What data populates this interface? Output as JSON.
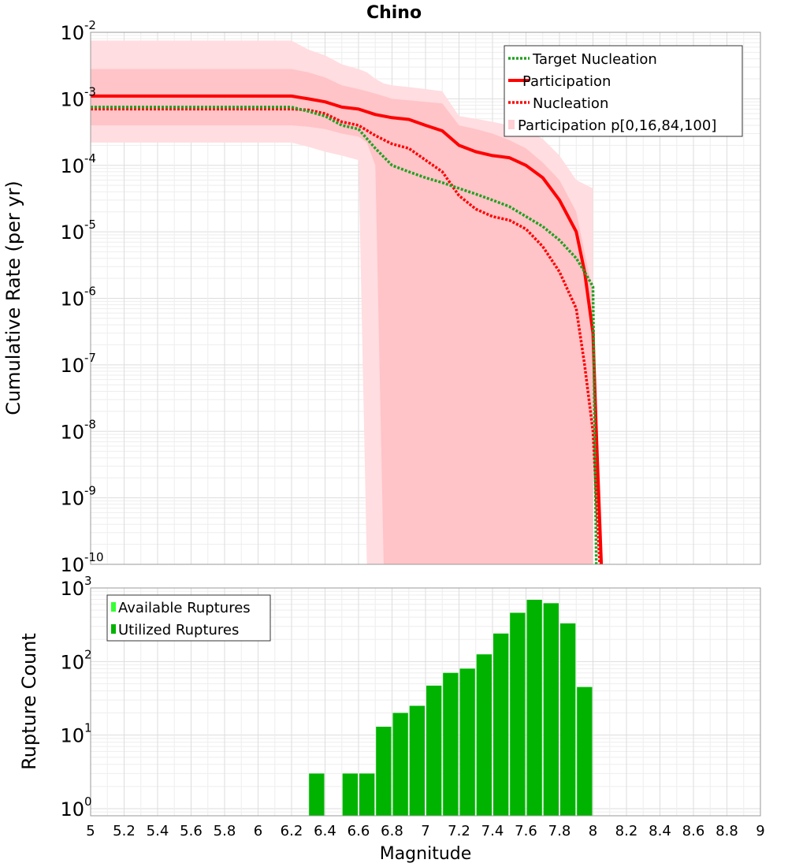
{
  "chart_data": [
    {
      "type": "line",
      "title": "Chino",
      "xlabel": "",
      "ylabel": "Cumulative Rate (per yr)",
      "xlim": [
        5,
        9
      ],
      "ylim": [
        1e-10,
        0.01
      ],
      "yscale": "log",
      "ytick_labels": [
        {
          "base": "10",
          "exp": "-2",
          "value": 0.01
        },
        {
          "base": "10",
          "exp": "-3",
          "value": 0.001
        },
        {
          "base": "10",
          "exp": "-4",
          "value": 0.0001
        },
        {
          "base": "10",
          "exp": "-5",
          "value": 1e-05
        },
        {
          "base": "10",
          "exp": "-6",
          "value": 1e-06
        },
        {
          "base": "10",
          "exp": "-7",
          "value": 1e-07
        },
        {
          "base": "10",
          "exp": "-8",
          "value": 1e-08
        },
        {
          "base": "10",
          "exp": "-9",
          "value": 1e-09
        },
        {
          "base": "10",
          "exp": "-10",
          "value": 1e-10
        }
      ],
      "grid": true,
      "legend_position": "top-right",
      "series": [
        {
          "name": "Target Nucleation",
          "style": "dotted",
          "color": "#22a022",
          "x": [
            5.0,
            6.2,
            6.3,
            6.4,
            6.5,
            6.6,
            6.7,
            6.8,
            6.9,
            7.0,
            7.1,
            7.2,
            7.3,
            7.4,
            7.5,
            7.6,
            7.7,
            7.8,
            7.9,
            7.95,
            8.0,
            8.02
          ],
          "y": [
            0.00075,
            0.00075,
            0.00065,
            0.00055,
            0.0004,
            0.00035,
            0.00018,
            0.0001,
            8e-05,
            6.5e-05,
            5.5e-05,
            4.5e-05,
            3.7e-05,
            3e-05,
            2.4e-05,
            1.7e-05,
            1.2e-05,
            7.5e-06,
            4e-06,
            2.5e-06,
            1.5e-06,
            1e-10
          ]
        },
        {
          "name": "Participation",
          "style": "solid",
          "color": "#ff0000",
          "x": [
            5.0,
            6.2,
            6.3,
            6.4,
            6.5,
            6.6,
            6.7,
            6.8,
            6.9,
            7.0,
            7.1,
            7.2,
            7.3,
            7.4,
            7.5,
            7.6,
            7.7,
            7.8,
            7.9,
            7.95,
            8.0,
            8.02,
            8.05
          ],
          "y": [
            0.0011,
            0.0011,
            0.001,
            0.0009,
            0.00075,
            0.0007,
            0.00058,
            0.00052,
            0.00049,
            0.0004,
            0.00033,
            0.0002,
            0.00016,
            0.00014,
            0.00013,
            0.0001,
            6.5e-05,
            3e-05,
            1e-05,
            2.5e-06,
            3e-07,
            1e-08,
            1e-10
          ]
        },
        {
          "name": "Nucleation",
          "style": "dotted",
          "color": "#ff0000",
          "x": [
            5.0,
            6.2,
            6.3,
            6.4,
            6.5,
            6.6,
            6.7,
            6.8,
            6.9,
            7.0,
            7.1,
            7.2,
            7.3,
            7.4,
            7.5,
            7.6,
            7.7,
            7.8,
            7.9,
            7.95,
            8.0,
            8.02,
            8.04
          ],
          "y": [
            0.0007,
            0.0007,
            0.00068,
            0.0006,
            0.00045,
            0.0004,
            0.00028,
            0.00021,
            0.00018,
            0.00012,
            8e-05,
            3.5e-05,
            2.2e-05,
            1.7e-05,
            1.5e-05,
            1.1e-05,
            6e-06,
            2.5e-06,
            7e-07,
            1e-07,
            1e-08,
            1e-09,
            1e-10
          ]
        },
        {
          "name": "Participation p[0,16,84,100]",
          "style": "band",
          "color": "#ff9aa8",
          "x": [
            5.0,
            6.2,
            6.3,
            6.4,
            6.5,
            6.6,
            6.65,
            6.7,
            6.75,
            6.8,
            6.9,
            7.0,
            7.1,
            7.2,
            7.3,
            7.4,
            7.5,
            7.6,
            7.7,
            7.8,
            7.9,
            8.0
          ],
          "p0": [
            0.00022,
            0.00022,
            0.00019,
            0.00016,
            0.00014,
            0.00012,
            1e-10,
            1e-10,
            1e-10,
            1e-10,
            1e-10,
            1e-10,
            1e-10,
            1e-10,
            1e-10,
            1e-10,
            1e-10,
            1e-10,
            1e-10,
            1e-10,
            1e-10,
            1e-10
          ],
          "p16": [
            0.0004,
            0.0004,
            0.00038,
            0.00035,
            0.0003,
            0.00027,
            0.00022,
            0.0001,
            1e-10,
            1e-10,
            1e-10,
            1e-10,
            1e-10,
            1e-10,
            1e-10,
            1e-10,
            1e-10,
            1e-10,
            1e-10,
            1e-10,
            1e-10,
            1e-10
          ],
          "p84": [
            0.0028,
            0.0028,
            0.0025,
            0.0021,
            0.0016,
            0.0014,
            0.0013,
            0.0012,
            0.0011,
            0.001,
            0.00095,
            0.0009,
            0.00085,
            0.0004,
            0.00035,
            0.0003,
            0.00024,
            0.00018,
            0.00011,
            6e-05,
            2e-05,
            1.2e-06
          ],
          "p100": [
            0.0075,
            0.0075,
            0.0055,
            0.0045,
            0.0033,
            0.0028,
            0.0025,
            0.002,
            0.0017,
            0.0016,
            0.0015,
            0.0014,
            0.0013,
            0.00055,
            0.0005,
            0.00045,
            0.0004,
            0.00035,
            0.00025,
            0.00014,
            6e-05,
            4.5e-05
          ]
        }
      ]
    },
    {
      "type": "bar",
      "title": "",
      "xlabel": "Magnitude",
      "ylabel": "Rupture Count",
      "xlim": [
        5,
        9
      ],
      "ylim": [
        0.8,
        1000
      ],
      "yscale": "log",
      "ytick_labels": [
        {
          "base": "10",
          "exp": "3",
          "value": 1000
        },
        {
          "base": "10",
          "exp": "2",
          "value": 100
        },
        {
          "base": "10",
          "exp": "1",
          "value": 10
        },
        {
          "base": "10",
          "exp": "0",
          "value": 1
        }
      ],
      "xticks": [
        "5",
        "5.2",
        "5.4",
        "5.6",
        "5.8",
        "6",
        "6.2",
        "6.4",
        "6.6",
        "6.8",
        "7",
        "7.2",
        "7.4",
        "7.6",
        "7.8",
        "8",
        "8.2",
        "8.4",
        "8.6",
        "8.8",
        "9"
      ],
      "grid": true,
      "legend_position": "top-left",
      "bar_width": 0.1,
      "series": [
        {
          "name": "Available Ruptures",
          "color": "#33ff33",
          "x": [
            6.35,
            6.55,
            6.65,
            6.75,
            6.85,
            6.95,
            7.05,
            7.15,
            7.25,
            7.35,
            7.45,
            7.55,
            7.65,
            7.75,
            7.85,
            7.95
          ],
          "values": [
            3,
            3,
            3,
            13,
            20,
            25,
            47,
            70,
            80,
            125,
            240,
            460,
            690,
            620,
            330,
            45
          ]
        },
        {
          "name": "Utilized Ruptures",
          "color": "#00b300",
          "x": [
            6.35,
            6.55,
            6.65,
            6.75,
            6.85,
            6.95,
            7.05,
            7.15,
            7.25,
            7.35,
            7.45,
            7.55,
            7.65,
            7.75,
            7.85,
            7.95
          ],
          "values": [
            3,
            3,
            3,
            13,
            20,
            25,
            47,
            70,
            80,
            125,
            240,
            460,
            690,
            620,
            330,
            45
          ]
        }
      ]
    }
  ]
}
